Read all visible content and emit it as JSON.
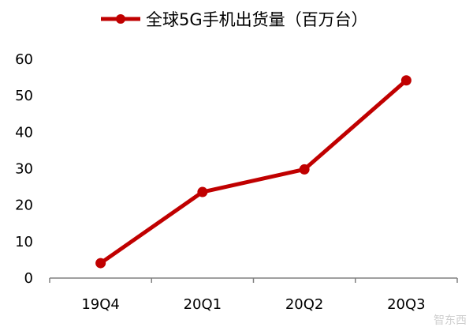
{
  "colors": {
    "series": "#C00000",
    "axis": "#808080"
  },
  "watermark": "智东西",
  "chart_data": {
    "type": "line",
    "title": "",
    "xlabel": "",
    "ylabel": "",
    "categories": [
      "19Q4",
      "20Q1",
      "20Q2",
      "20Q3"
    ],
    "series": [
      {
        "name": "全球5G手机出货量（百万台）",
        "values": [
          4.1,
          23.6,
          29.8,
          54.2
        ]
      }
    ],
    "ylim": [
      0,
      60
    ],
    "yticks": [
      0,
      10,
      20,
      30,
      40,
      50,
      60
    ],
    "grid": false,
    "legend": "top-center"
  }
}
